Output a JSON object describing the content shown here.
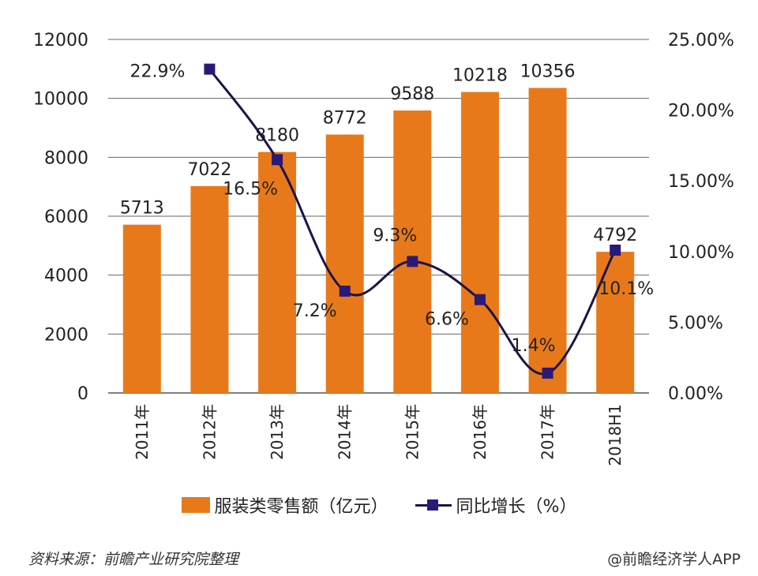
{
  "chart_data": {
    "type": "bar+line",
    "title": "",
    "categories": [
      "2011年",
      "2012年",
      "2013年",
      "2014年",
      "2015年",
      "2016年",
      "2017年",
      "2018H1"
    ],
    "series": [
      {
        "name": "服装类零售额（亿元）",
        "type": "bar",
        "axis": "left",
        "color": "#E8791A",
        "values": [
          5713,
          7022,
          8180,
          8772,
          9588,
          10218,
          10356,
          4792
        ],
        "labels": [
          "5713",
          "7022",
          "8180",
          "8772",
          "9588",
          "10218",
          "10356",
          "4792"
        ]
      },
      {
        "name": "同比增长（%）",
        "type": "line",
        "axis": "right",
        "color": "#1b1446",
        "marker": "square",
        "smooth": true,
        "values": [
          null,
          22.9,
          16.5,
          7.2,
          9.3,
          6.6,
          1.4,
          10.1
        ],
        "labels": [
          "",
          "22.9%",
          "16.5%",
          "7.2%",
          "9.3%",
          "6.6%",
          "1.4%",
          "10.1%"
        ]
      }
    ],
    "y_left": {
      "range": [
        0,
        12000
      ],
      "ticks": [
        "0",
        "2000",
        "4000",
        "6000",
        "8000",
        "10000",
        "12000"
      ]
    },
    "y_right": {
      "range": [
        0,
        25
      ],
      "ticks": [
        "0.00%",
        "5.00%",
        "10.00%",
        "15.00%",
        "20.00%",
        "25.00%"
      ]
    },
    "grid": true,
    "legend_position": "bottom"
  },
  "legend": {
    "bar_label": "服装类零售额（亿元）",
    "line_label": "同比增长（%）"
  },
  "footer": {
    "source": "资料来源：前瞻产业研究院整理",
    "credit": "@前瞻经济学人APP"
  }
}
